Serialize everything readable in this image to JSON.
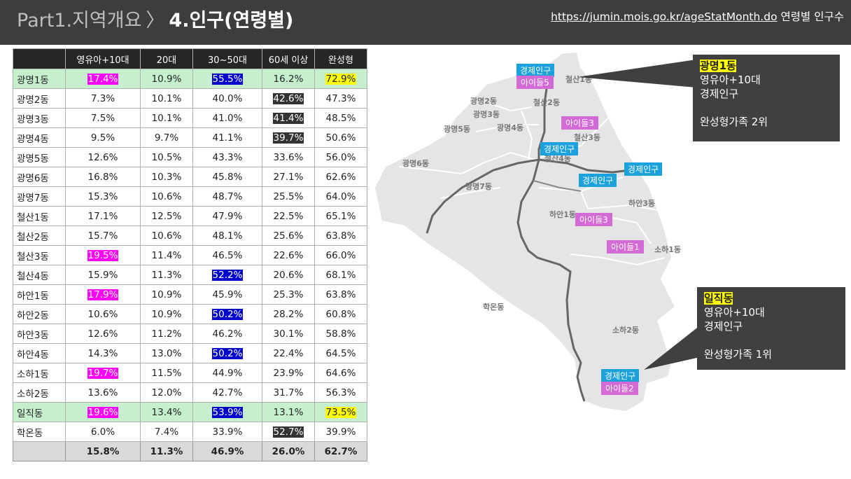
{
  "header": {
    "part": "Part1.지역개요",
    "sep": "〉",
    "title": "4.인구(연령별)",
    "source_url": "https://jumin.mois.go.kr/ageStatMonth.do",
    "source_label": "연령별 인구수"
  },
  "table": {
    "columns": [
      "",
      "영유아+10대",
      "20대",
      "30~50대",
      "60세 이상",
      "완성형"
    ],
    "rows": [
      {
        "name": "광명1동",
        "v": [
          "17.4%",
          "10.9%",
          "55.5%",
          "16.2%",
          "72.9%"
        ],
        "hl": [
          "m",
          "",
          "b",
          "",
          "y"
        ],
        "row": "green"
      },
      {
        "name": "광명2동",
        "v": [
          "7.3%",
          "10.1%",
          "40.0%",
          "42.6%",
          "47.3%"
        ],
        "hl": [
          "",
          "",
          "",
          "k",
          ""
        ],
        "row": ""
      },
      {
        "name": "광명3동",
        "v": [
          "7.5%",
          "10.1%",
          "41.0%",
          "41.4%",
          "48.5%"
        ],
        "hl": [
          "",
          "",
          "",
          "k",
          ""
        ],
        "row": ""
      },
      {
        "name": "광명4동",
        "v": [
          "9.5%",
          "9.7%",
          "41.1%",
          "39.7%",
          "50.6%"
        ],
        "hl": [
          "",
          "",
          "",
          "k",
          ""
        ],
        "row": ""
      },
      {
        "name": "광명5동",
        "v": [
          "12.6%",
          "10.5%",
          "43.3%",
          "33.6%",
          "56.0%"
        ],
        "hl": [
          "",
          "",
          "",
          "",
          ""
        ],
        "row": ""
      },
      {
        "name": "광명6동",
        "v": [
          "16.8%",
          "10.3%",
          "45.8%",
          "27.1%",
          "62.6%"
        ],
        "hl": [
          "",
          "",
          "",
          "",
          ""
        ],
        "row": ""
      },
      {
        "name": "광명7동",
        "v": [
          "15.3%",
          "10.6%",
          "48.7%",
          "25.5%",
          "64.0%"
        ],
        "hl": [
          "",
          "",
          "",
          "",
          ""
        ],
        "row": ""
      },
      {
        "name": "철산1동",
        "v": [
          "17.1%",
          "12.5%",
          "47.9%",
          "22.5%",
          "65.1%"
        ],
        "hl": [
          "",
          "",
          "",
          "",
          ""
        ],
        "row": ""
      },
      {
        "name": "철산2동",
        "v": [
          "15.7%",
          "10.6%",
          "48.1%",
          "25.6%",
          "63.8%"
        ],
        "hl": [
          "",
          "",
          "",
          "",
          ""
        ],
        "row": ""
      },
      {
        "name": "철산3동",
        "v": [
          "19.5%",
          "11.4%",
          "46.5%",
          "22.6%",
          "66.0%"
        ],
        "hl": [
          "m",
          "",
          "",
          "",
          ""
        ],
        "row": ""
      },
      {
        "name": "철산4동",
        "v": [
          "15.9%",
          "11.3%",
          "52.2%",
          "20.6%",
          "68.1%"
        ],
        "hl": [
          "",
          "",
          "b",
          "",
          ""
        ],
        "row": ""
      },
      {
        "name": "하안1동",
        "v": [
          "17.9%",
          "10.9%",
          "45.9%",
          "25.3%",
          "63.8%"
        ],
        "hl": [
          "m",
          "",
          "",
          "",
          ""
        ],
        "row": ""
      },
      {
        "name": "하안2동",
        "v": [
          "10.6%",
          "10.9%",
          "50.2%",
          "28.2%",
          "60.8%"
        ],
        "hl": [
          "",
          "",
          "b",
          "",
          ""
        ],
        "row": ""
      },
      {
        "name": "하안3동",
        "v": [
          "12.6%",
          "11.2%",
          "46.2%",
          "30.1%",
          "58.8%"
        ],
        "hl": [
          "",
          "",
          "",
          "",
          ""
        ],
        "row": ""
      },
      {
        "name": "하안4동",
        "v": [
          "14.3%",
          "13.0%",
          "50.2%",
          "22.4%",
          "64.5%"
        ],
        "hl": [
          "",
          "",
          "b",
          "",
          ""
        ],
        "row": ""
      },
      {
        "name": "소하1동",
        "v": [
          "19.7%",
          "11.5%",
          "44.9%",
          "23.9%",
          "64.6%"
        ],
        "hl": [
          "m",
          "",
          "",
          "",
          ""
        ],
        "row": ""
      },
      {
        "name": "소하2동",
        "v": [
          "13.6%",
          "12.0%",
          "42.7%",
          "31.7%",
          "56.3%"
        ],
        "hl": [
          "",
          "",
          "",
          "",
          ""
        ],
        "row": ""
      },
      {
        "name": "일직동",
        "v": [
          "19.6%",
          "13.4%",
          "53.9%",
          "13.1%",
          "73.5%"
        ],
        "hl": [
          "m",
          "",
          "b",
          "",
          "y"
        ],
        "row": "green"
      },
      {
        "name": "학온동",
        "v": [
          "6.0%",
          "7.4%",
          "33.9%",
          "52.7%",
          "39.9%"
        ],
        "hl": [
          "",
          "",
          "",
          "k",
          ""
        ],
        "row": ""
      }
    ],
    "total": [
      "",
      "15.8%",
      "11.3%",
      "46.9%",
      "26.0%",
      "62.7%"
    ]
  },
  "colors": {
    "magenta": "#ff00ff",
    "blue": "#0000cc",
    "dark": "#333333",
    "yellow": "#ffff00",
    "green_row": "#c6efce",
    "tag_blue": "#1ba1dc",
    "tag_pink": "#d36ad6"
  },
  "map": {
    "districts": [
      "철산1동",
      "광명2동",
      "철산2동",
      "광명3동",
      "광명5동",
      "광명4동",
      "철산3동",
      "철산4동",
      "광명6동",
      "광명7동",
      "하안1동",
      "하안3동",
      "소하1동",
      "학온동",
      "소하2동"
    ],
    "tags": {
      "econ1": "경제인구",
      "kids5": "아이들5",
      "kids3a": "아이들3",
      "econ2": "경제인구",
      "econ3": "경제인구",
      "econ4": "경제인구",
      "kids3b": "아이들3",
      "kids1": "아이들1",
      "econ5": "경제인구",
      "kids2": "아이들2"
    }
  },
  "callouts": {
    "gwm1": {
      "title": "광명1동",
      "l1": "영유아+10대",
      "l2": "경제인구",
      "l3": "완성형가족 2위"
    },
    "ilj": {
      "title": "일직동",
      "l1": "영유아+10대",
      "l2": "경제인구",
      "l3": "완성형가족 1위"
    }
  }
}
